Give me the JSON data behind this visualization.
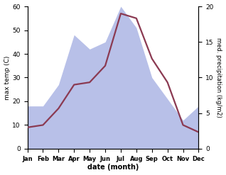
{
  "months": [
    "Jan",
    "Feb",
    "Mar",
    "Apr",
    "May",
    "Jun",
    "Jul",
    "Aug",
    "Sep",
    "Oct",
    "Nov",
    "Dec"
  ],
  "temperature": [
    9,
    10,
    17,
    27,
    28,
    35,
    57,
    55,
    38,
    28,
    10,
    7
  ],
  "precipitation": [
    6,
    6,
    9,
    16,
    14,
    15,
    20,
    17,
    10,
    7,
    4,
    6
  ],
  "temp_color": "#8b3a52",
  "precip_fill_color": "#b8c0e8",
  "left_ylabel": "max temp (C)",
  "right_ylabel": "med. precipitation (kg/m2)",
  "xlabel": "date (month)",
  "ylim_left": [
    0,
    60
  ],
  "ylim_right": [
    0,
    20
  ],
  "left_yticks": [
    0,
    10,
    20,
    30,
    40,
    50,
    60
  ],
  "right_yticks": [
    0,
    5,
    10,
    15,
    20
  ],
  "bg_color": "#ffffff"
}
